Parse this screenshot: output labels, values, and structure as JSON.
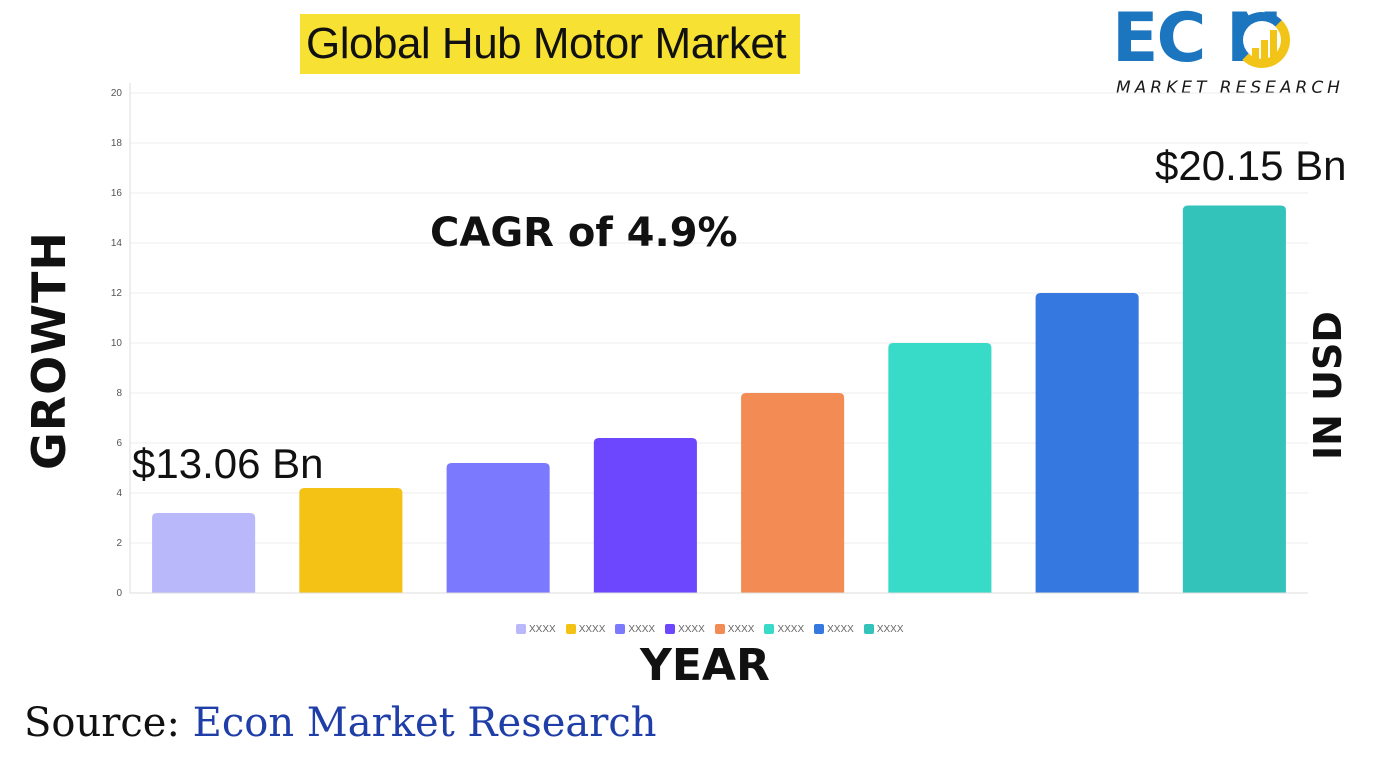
{
  "title": "Global Hub Motor Market",
  "logo": {
    "word": "EC N",
    "sub": "MARKET RESEARCH"
  },
  "axes": {
    "y_title": "GROWTH",
    "x_title": "YEAR",
    "right_title": "IN USD"
  },
  "annotations": {
    "start": "$13.06 Bn",
    "end": "$20.15 Bn",
    "cagr": "CAGR of 4.9%"
  },
  "source": {
    "label": "Source:",
    "value": "Econ Market Research"
  },
  "chart_data": {
    "type": "bar",
    "categories": [
      "XXXX",
      "XXXX",
      "XXXX",
      "XXXX",
      "XXXX",
      "XXXX",
      "XXXX",
      "XXXX"
    ],
    "values": [
      3.2,
      4.2,
      5.2,
      6.2,
      8.0,
      10.0,
      12.0,
      15.5
    ],
    "colors": [
      "#b8b8fb",
      "#f3c215",
      "#7b79fd",
      "#6c47fe",
      "#f38b55",
      "#38dac8",
      "#3579e0",
      "#34c3bb"
    ],
    "ylim": [
      0,
      20
    ],
    "yticks": [
      0,
      2,
      4,
      6,
      8,
      10,
      12,
      14,
      16,
      18,
      20
    ],
    "grid": true,
    "legend": "bottom"
  }
}
